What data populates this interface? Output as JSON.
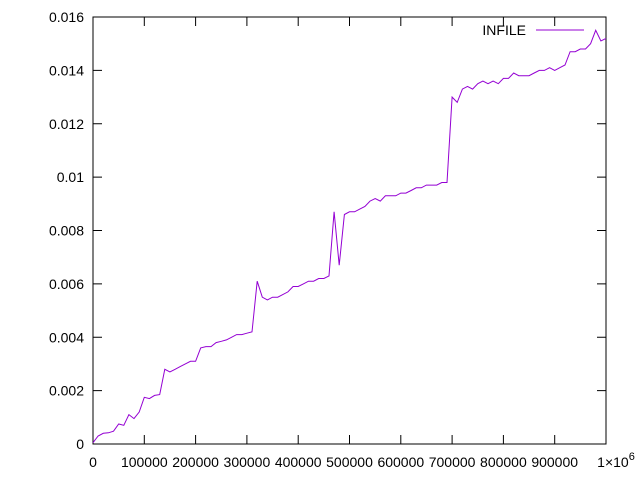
{
  "chart_data": {
    "type": "line",
    "title": "",
    "xlabel": "",
    "ylabel": "",
    "xlim": [
      0,
      1000000
    ],
    "ylim": [
      0,
      0.016
    ],
    "x_ticks": [
      0,
      100000,
      200000,
      300000,
      400000,
      500000,
      600000,
      700000,
      800000,
      900000,
      1000000
    ],
    "x_tick_labels": [
      "0",
      "100000",
      "200000",
      "300000",
      "400000",
      "500000",
      "600000",
      "700000",
      "800000",
      "900000",
      "1×10^6"
    ],
    "y_ticks": [
      0,
      0.002,
      0.004,
      0.006,
      0.008,
      0.01,
      0.012,
      0.014,
      0.016
    ],
    "y_tick_labels": [
      "0",
      "0.002",
      "0.004",
      "0.006",
      "0.008",
      "0.01",
      "0.012",
      "0.014",
      "0.016"
    ],
    "grid": false,
    "legend": "top-right",
    "series": [
      {
        "name": "INFILE",
        "color": "#9400d3",
        "x": [
          0,
          10000,
          20000,
          30000,
          40000,
          50000,
          60000,
          70000,
          80000,
          90000,
          100000,
          110000,
          120000,
          130000,
          140000,
          150000,
          160000,
          170000,
          180000,
          190000,
          200000,
          210000,
          220000,
          230000,
          240000,
          250000,
          260000,
          270000,
          280000,
          290000,
          300000,
          310000,
          320000,
          330000,
          340000,
          350000,
          360000,
          370000,
          380000,
          390000,
          400000,
          410000,
          420000,
          430000,
          440000,
          450000,
          460000,
          470000,
          480000,
          490000,
          500000,
          510000,
          520000,
          530000,
          540000,
          550000,
          560000,
          570000,
          580000,
          590000,
          600000,
          610000,
          620000,
          630000,
          640000,
          650000,
          660000,
          670000,
          680000,
          690000,
          700000,
          710000,
          720000,
          730000,
          740000,
          750000,
          760000,
          770000,
          780000,
          790000,
          800000,
          810000,
          820000,
          830000,
          840000,
          850000,
          860000,
          870000,
          880000,
          890000,
          900000,
          910000,
          920000,
          930000,
          940000,
          950000,
          960000,
          970000,
          980000,
          990000,
          1000000
        ],
        "y": [
          5e-05,
          0.0003,
          0.0004,
          0.00042,
          0.00048,
          0.00075,
          0.0007,
          0.0011,
          0.00095,
          0.0012,
          0.00175,
          0.0017,
          0.00182,
          0.00185,
          0.0028,
          0.0027,
          0.0028,
          0.0029,
          0.003,
          0.0031,
          0.0031,
          0.0036,
          0.00365,
          0.00365,
          0.0038,
          0.00385,
          0.0039,
          0.004,
          0.0041,
          0.0041,
          0.00415,
          0.0042,
          0.0061,
          0.0055,
          0.0054,
          0.0055,
          0.0055,
          0.0056,
          0.0057,
          0.0059,
          0.0059,
          0.006,
          0.0061,
          0.0061,
          0.0062,
          0.0062,
          0.0063,
          0.0087,
          0.0067,
          0.0086,
          0.0087,
          0.0087,
          0.0088,
          0.0089,
          0.0091,
          0.0092,
          0.0091,
          0.0093,
          0.0093,
          0.0093,
          0.0094,
          0.0094,
          0.0095,
          0.0096,
          0.0096,
          0.0097,
          0.0097,
          0.0097,
          0.0098,
          0.0098,
          0.013,
          0.0128,
          0.0133,
          0.0134,
          0.0133,
          0.0135,
          0.0136,
          0.0135,
          0.0136,
          0.0135,
          0.0137,
          0.0137,
          0.0139,
          0.0138,
          0.0138,
          0.0138,
          0.0139,
          0.014,
          0.014,
          0.0141,
          0.014,
          0.0141,
          0.0142,
          0.0147,
          0.0147,
          0.0148,
          0.0148,
          0.015,
          0.0155,
          0.0151,
          0.0152
        ]
      }
    ]
  }
}
